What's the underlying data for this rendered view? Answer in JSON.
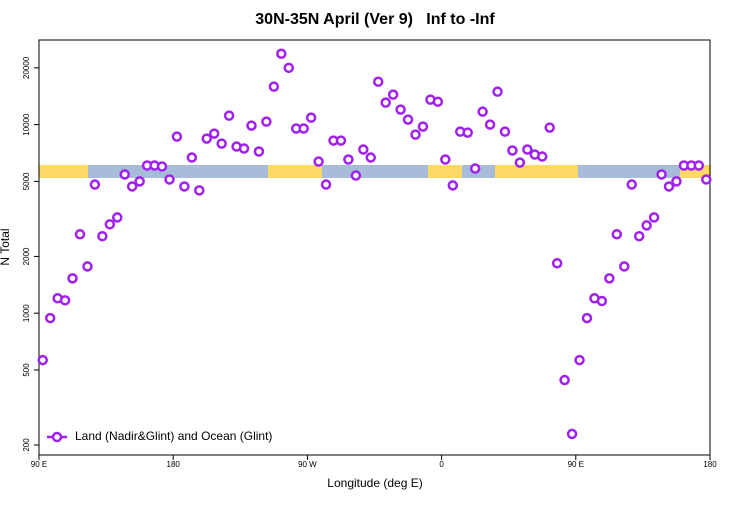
{
  "chart_data": {
    "type": "scatter",
    "title": "30N-35N April (Ver 9)   Inf to -Inf",
    "x_label": "Longitude (deg E)",
    "y_label": "N Total",
    "x": [
      92.5,
      97.5,
      102.5,
      107.5,
      112.5,
      117.5,
      122.5,
      127.5,
      132.5,
      137.5,
      142.5,
      147.5,
      152.5,
      157.5,
      162.5,
      167.5,
      172.5,
      177.5,
      182.5,
      187.5,
      192.5,
      197.5,
      202.5,
      207.5,
      212.5,
      217.5,
      222.5,
      227.5,
      232.5,
      237.5,
      242.5,
      247.5,
      252.5,
      257.5,
      262.5,
      267.5,
      272.5,
      277.5,
      282.5,
      287.5,
      292.5,
      297.5,
      302.5,
      307.5,
      312.5,
      317.5,
      322.5,
      327.5,
      332.5,
      337.5,
      342.5,
      347.5,
      352.5,
      357.5,
      362.5,
      367.5,
      372.5,
      377.5,
      382.5,
      387.5,
      392.5,
      397.5,
      402.5,
      407.5,
      412.5,
      417.5,
      422.5,
      427.5,
      432.5,
      437.5,
      442.5,
      447.5,
      452.5,
      457.5,
      462.5,
      467.5,
      472.5,
      477.5,
      482.5,
      487.5,
      492.5,
      497.5,
      502.5,
      507.5,
      512.5,
      517.5,
      522.5,
      527.5,
      532.5,
      537.5
    ],
    "series": [
      {
        "name": "Land (Nadir&Glint) and Ocean (Glint)",
        "color": "#a020f0",
        "values": [
          564,
          942,
          1200,
          1170,
          1530,
          2620,
          1770,
          4810,
          2560,
          2960,
          3220,
          5440,
          4700,
          5000,
          6070,
          6070,
          6000,
          5120,
          8640,
          4700,
          6690,
          4480,
          8430,
          8960,
          7930,
          11160,
          7650,
          7470,
          9880,
          7200,
          10370,
          15890,
          23760,
          20000,
          9530,
          9530,
          10890,
          6370,
          4810,
          8230,
          8230,
          6530,
          5370,
          7380,
          6690,
          16890,
          13080,
          14420,
          12010,
          10630,
          8850,
          9760,
          13570,
          13230,
          6530,
          4760,
          9180,
          9070,
          5850,
          11710,
          10000,
          14950,
          9180,
          7290,
          6290,
          7380,
          6940,
          6770,
          9640,
          1840,
          442,
          229,
          564,
          942,
          1200,
          1160,
          1530,
          2620,
          1770,
          4810,
          2560,
          2920,
          3220,
          5440,
          4700,
          5000,
          6070,
          6070,
          6070,
          5120
        ]
      }
    ],
    "xlim": [
      90,
      540
    ],
    "xticks": [
      {
        "value": 90,
        "label": "90 E"
      },
      180,
      {
        "value": 270,
        "label": "90 W"
      },
      {
        "value": 360,
        "label": "0"
      },
      {
        "value": 450,
        "label": "90 E"
      },
      {
        "value": 540,
        "label": "180"
      }
    ],
    "ylim": [
      177,
      28100
    ],
    "yticks": [
      200,
      500,
      1000,
      2000,
      5000,
      10000,
      20000
    ],
    "y_log": true,
    "legend": "bottom-left"
  }
}
